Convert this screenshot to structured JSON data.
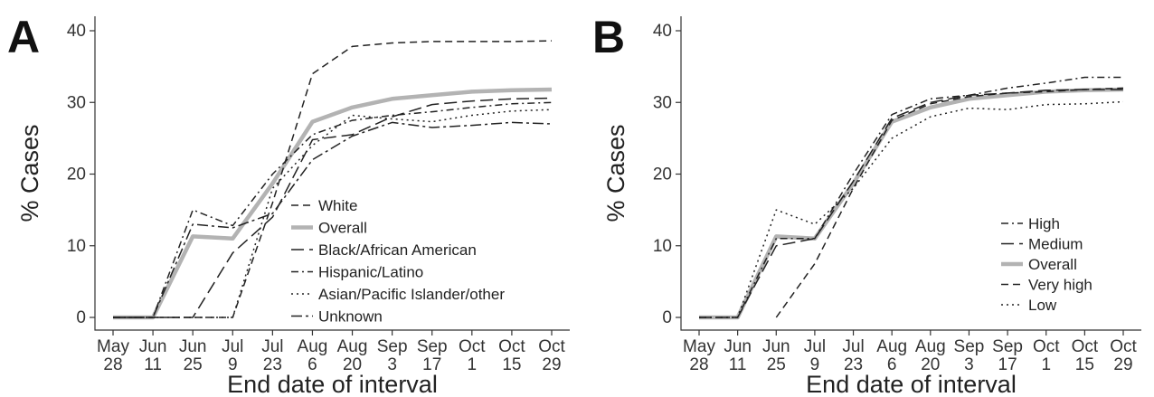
{
  "chart_data": [
    {
      "panel": "A",
      "type": "line",
      "ylabel": "% Cases",
      "xlabel": "End date of interval",
      "ylim": [
        0,
        40
      ],
      "yticks": [
        "0",
        "10",
        "20",
        "30",
        "40"
      ],
      "categories": [
        [
          "May",
          "28"
        ],
        [
          "Jun",
          "11"
        ],
        [
          "Jun",
          "25"
        ],
        [
          "Jul",
          "9"
        ],
        [
          "Jul",
          "23"
        ],
        [
          "Aug",
          "6"
        ],
        [
          "Aug",
          "20"
        ],
        [
          "Sep",
          "3"
        ],
        [
          "Sep",
          "17"
        ],
        [
          "Oct",
          "1"
        ],
        [
          "Oct",
          "15"
        ],
        [
          "Oct",
          "29"
        ]
      ],
      "legend_position": "bottom-right",
      "series": [
        {
          "name": "White",
          "style": "dashed",
          "color": "#222222",
          "values": [
            0,
            0,
            0,
            0,
            16,
            34,
            37.8,
            38.3,
            38.5,
            38.5,
            38.5,
            38.6
          ]
        },
        {
          "name": "Overall",
          "style": "solid",
          "color": "#b3b3b3",
          "values": [
            0,
            0,
            11.3,
            11,
            18.7,
            27.3,
            29.3,
            30.5,
            31,
            31.5,
            31.7,
            31.8
          ]
        },
        {
          "name": "Black/African American",
          "style": "longdash",
          "color": "#222222",
          "values": [
            0,
            0,
            0,
            9,
            14,
            24.8,
            25.5,
            28,
            29.7,
            30.2,
            30.5,
            30.6
          ]
        },
        {
          "name": "Hispanic/Latino",
          "style": "dotdash",
          "color": "#222222",
          "values": [
            0,
            0,
            15,
            12.8,
            20,
            25.5,
            27.5,
            28.2,
            28.7,
            29.3,
            29.8,
            30
          ]
        },
        {
          "name": "Asian/Pacific Islander/other",
          "style": "dotted",
          "color": "#222222",
          "values": [
            0,
            0,
            0,
            0,
            18,
            24,
            28.2,
            27.7,
            27.3,
            28.2,
            28.8,
            29
          ]
        },
        {
          "name": "Unknown",
          "style": "twodash",
          "color": "#222222",
          "values": [
            0,
            0,
            13,
            12.5,
            14.5,
            22,
            25.3,
            27.2,
            26.5,
            26.8,
            27.2,
            27
          ]
        }
      ]
    },
    {
      "panel": "B",
      "type": "line",
      "ylabel": "% Cases",
      "xlabel": "End date of interval",
      "ylim": [
        0,
        40
      ],
      "yticks": [
        "0",
        "10",
        "20",
        "30",
        "40"
      ],
      "categories": [
        [
          "May",
          "28"
        ],
        [
          "Jun",
          "11"
        ],
        [
          "Jun",
          "25"
        ],
        [
          "Jul",
          "9"
        ],
        [
          "Jul",
          "23"
        ],
        [
          "Aug",
          "6"
        ],
        [
          "Aug",
          "20"
        ],
        [
          "Sep",
          "3"
        ],
        [
          "Sep",
          "17"
        ],
        [
          "Oct",
          "1"
        ],
        [
          "Oct",
          "15"
        ],
        [
          "Oct",
          "29"
        ]
      ],
      "legend_position": "bottom-right",
      "series": [
        {
          "name": "High",
          "style": "dotdash",
          "color": "#222222",
          "values": [
            0,
            0,
            11,
            11,
            20,
            28.3,
            30.5,
            31,
            32,
            32.7,
            33.5,
            33.5
          ]
        },
        {
          "name": "Medium",
          "style": "longdash",
          "color": "#222222",
          "values": [
            0,
            0,
            10,
            11,
            19,
            27.8,
            30,
            31,
            31.3,
            31.7,
            31.8,
            31.8
          ]
        },
        {
          "name": "Overall",
          "style": "solid",
          "color": "#b3b3b3",
          "values": [
            0,
            0,
            11.3,
            11,
            18.7,
            27.3,
            29.3,
            30.5,
            31,
            31.5,
            31.7,
            31.8
          ]
        },
        {
          "name": "Very high",
          "style": "dashed",
          "color": "#222222",
          "values": [
            null,
            null,
            0,
            7.5,
            18,
            27.5,
            29.8,
            30.8,
            31.3,
            31.5,
            31.8,
            32
          ]
        },
        {
          "name": "Low",
          "style": "dotted",
          "color": "#222222",
          "values": [
            0,
            0,
            15,
            13,
            18,
            25,
            28,
            29.2,
            29,
            29.7,
            29.8,
            30.1
          ]
        }
      ]
    }
  ]
}
